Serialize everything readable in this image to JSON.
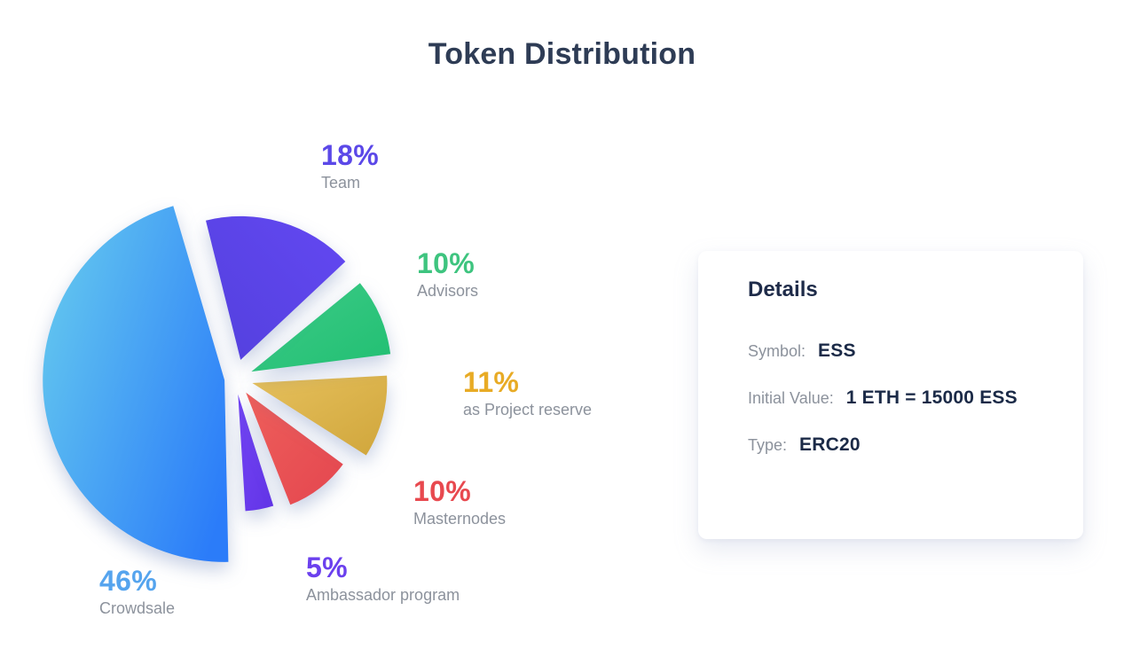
{
  "page": {
    "title": "Token Distribution"
  },
  "details_card": {
    "heading": "Details",
    "rows": [
      {
        "label": "Symbol:",
        "value": "ESS"
      },
      {
        "label": "Initial Value:",
        "value": "1 ETH = 15000 ESS"
      },
      {
        "label": "Type:",
        "value": "ERC20"
      }
    ]
  },
  "chart_data": {
    "type": "pie",
    "title": "Token Distribution",
    "legend_position": "callouts-around-pie",
    "start_angle": -16,
    "units": "percent",
    "slices": [
      {
        "label": "Team",
        "pct": "18%",
        "value": 18,
        "color_from": "#6348f2",
        "color_to": "#5340dd",
        "label_color": "#5b48e8",
        "radius": 162,
        "explode": 22,
        "pad": 2,
        "z": 6,
        "grad": [
          1,
          0,
          0,
          1
        ]
      },
      {
        "label": "Advisors",
        "pct": "10%",
        "value": 10,
        "color_from": "#3ecb88",
        "color_to": "#21bf72",
        "label_color": "#3ec47f",
        "radius": 158,
        "explode": 20,
        "pad": 2,
        "z": 5,
        "grad": [
          0,
          0,
          1,
          1
        ]
      },
      {
        "label": "as Project reserve",
        "pct": "11%",
        "value": 11,
        "color_from": "#e6c05c",
        "color_to": "#d0a63c",
        "label_color": "#e8ab25",
        "radius": 152,
        "explode": 20,
        "pad": 2,
        "z": 4,
        "grad": [
          0,
          0,
          1,
          1
        ]
      },
      {
        "label": "Masternodes",
        "pct": "10%",
        "value": 10,
        "color_from": "#ee5f5b",
        "color_to": "#e4464f",
        "label_color": "#e8494f",
        "radius": 136,
        "explode": 20,
        "pad": 2,
        "z": 3,
        "grad": [
          0,
          0,
          1,
          1
        ]
      },
      {
        "label": "Ambassador program",
        "pct": "5%",
        "value": 5,
        "color_from": "#7344f4",
        "color_to": "#6234e6",
        "label_color": "#6b40ee",
        "radius": 132,
        "explode": 18,
        "pad": 2,
        "z": 1,
        "grad": [
          0,
          0,
          1,
          1
        ]
      },
      {
        "label": "Crowdsale",
        "pct": "46%",
        "value": 46,
        "color_from": "#63c7ef",
        "color_to": "#2b7cf9",
        "label_color": "#55a4ee",
        "radius": 205,
        "explode": 12,
        "pad": 0.4,
        "z": 2,
        "grad": [
          0,
          0.2,
          1,
          0.8
        ]
      }
    ]
  }
}
